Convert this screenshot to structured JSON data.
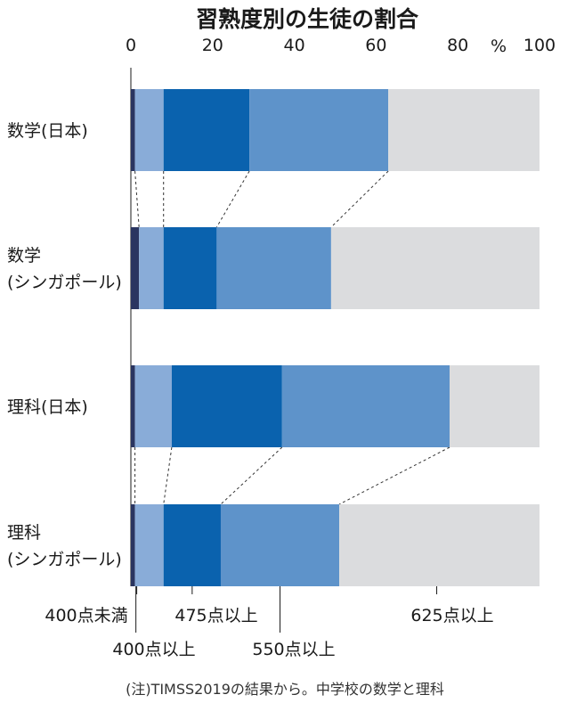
{
  "chart_data": {
    "type": "bar",
    "orientation": "horizontal",
    "stacked": true,
    "title": "習熟度別の生徒の割合",
    "unit": "%",
    "xlim": [
      0,
      100
    ],
    "xticks": [
      "0",
      "20",
      "40",
      "60",
      "80",
      "100"
    ],
    "grid": false,
    "categories": [
      [
        "数学(日本)"
      ],
      [
        "数学",
        "(シンガポール)"
      ],
      [
        "理科(日本)"
      ],
      [
        "理科",
        "(シンガポール)"
      ]
    ],
    "series": [
      {
        "name": "400点未満",
        "color": "#2a3560",
        "values": [
          1,
          2,
          1,
          1
        ]
      },
      {
        "name": "400点以上",
        "color": "#89acd8",
        "values": [
          7,
          6,
          9,
          7
        ]
      },
      {
        "name": "475点以上",
        "color": "#0a62ae",
        "values": [
          21,
          13,
          27,
          14
        ]
      },
      {
        "name": "550点以上",
        "color": "#5e93ca",
        "values": [
          34,
          28,
          41,
          29
        ]
      },
      {
        "name": "625点以上",
        "color": "#dbdcde",
        "values": [
          37,
          51,
          22,
          49
        ]
      }
    ],
    "note": "(注)TIMSS2019の結果から。中学校の数学と理科"
  }
}
